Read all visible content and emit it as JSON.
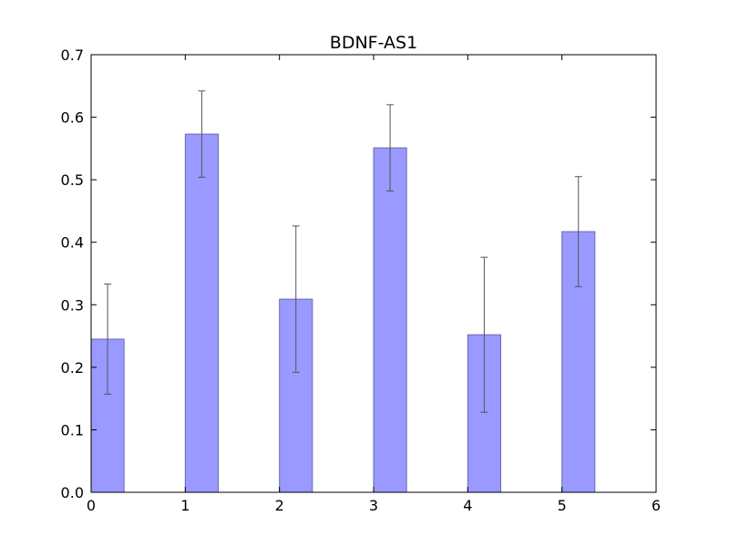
{
  "chart_data": {
    "type": "bar",
    "title": "BDNF-AS1",
    "xlabel": "",
    "ylabel": "",
    "x": [
      0,
      1,
      2,
      3,
      4,
      5
    ],
    "values": [
      0.245,
      0.573,
      0.309,
      0.551,
      0.252,
      0.417
    ],
    "errors": [
      0.088,
      0.069,
      0.117,
      0.069,
      0.124,
      0.088
    ],
    "bar_width": 0.35,
    "xlim": [
      0,
      6
    ],
    "ylim": [
      0,
      0.7
    ],
    "xticks": [
      "0",
      "1",
      "2",
      "3",
      "4",
      "5",
      "6"
    ],
    "yticks": [
      "0.0",
      "0.1",
      "0.2",
      "0.3",
      "0.4",
      "0.5",
      "0.6",
      "0.7"
    ],
    "grid": false,
    "colors": {
      "bar_fill": "#9999ff",
      "bar_edge": "#6b6bb0",
      "error_bar": "#555555",
      "axes": "#000000"
    }
  }
}
